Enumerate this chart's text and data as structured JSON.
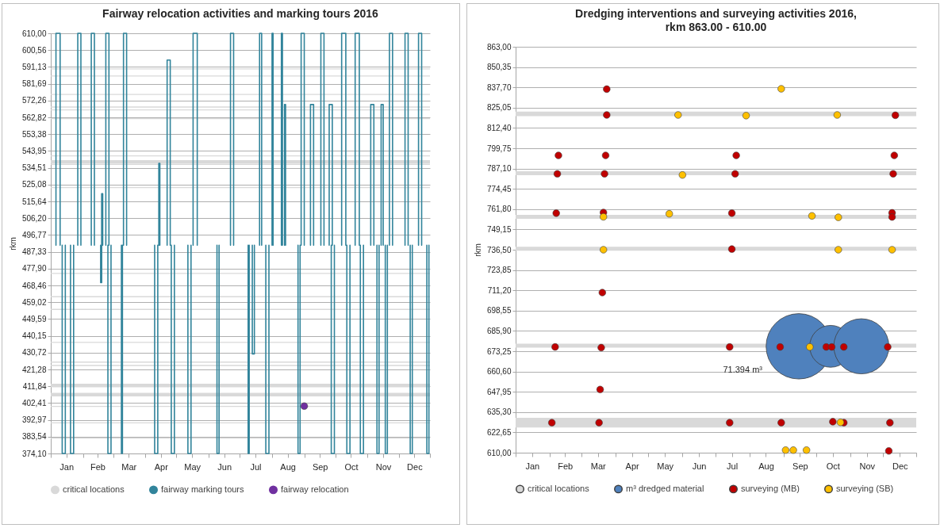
{
  "chart_data": [
    {
      "type": "line",
      "title": "Fairway relocation activities and marking tours 2016",
      "ylabel": "rkm",
      "xlim": [
        "2016-01-01",
        "2016-12-31"
      ],
      "xticks": [
        {
          "value": "2016-01-01",
          "label": null
        },
        {
          "value": "2016-01-16",
          "label": "Jan"
        },
        {
          "value": "2016-02-01",
          "label": null
        },
        {
          "value": "2016-02-15",
          "label": "Feb"
        },
        {
          "value": "2016-03-01",
          "label": null
        },
        {
          "value": "2016-03-16",
          "label": "Mar"
        },
        {
          "value": "2016-04-01",
          "label": null
        },
        {
          "value": "2016-04-16",
          "label": "Apr"
        },
        {
          "value": "2016-05-01",
          "label": null
        },
        {
          "value": "2016-05-16",
          "label": "May"
        },
        {
          "value": "2016-06-01",
          "label": null
        },
        {
          "value": "2016-06-16",
          "label": "Jun"
        },
        {
          "value": "2016-07-01",
          "label": null
        },
        {
          "value": "2016-07-16",
          "label": "Jul"
        },
        {
          "value": "2016-08-01",
          "label": null
        },
        {
          "value": "2016-08-16",
          "label": "Aug"
        },
        {
          "value": "2016-09-01",
          "label": null
        },
        {
          "value": "2016-09-16",
          "label": "Sep"
        },
        {
          "value": "2016-10-01",
          "label": null
        },
        {
          "value": "2016-10-16",
          "label": "Oct"
        },
        {
          "value": "2016-11-01",
          "label": null
        },
        {
          "value": "2016-11-16",
          "label": "Nov"
        },
        {
          "value": "2016-12-01",
          "label": null
        },
        {
          "value": "2016-12-16",
          "label": "Dec"
        },
        {
          "value": "2016-12-31",
          "label": null
        }
      ],
      "ylim": [
        374.1,
        610
      ],
      "yticks": [
        {
          "value": 374.1,
          "label": "374,10"
        },
        {
          "value": 383.54,
          "label": "383,54"
        },
        {
          "value": 392.97,
          "label": "392,97"
        },
        {
          "value": 402.41,
          "label": "402,41"
        },
        {
          "value": 411.84,
          "label": "411,84"
        },
        {
          "value": 421.28,
          "label": "421,28"
        },
        {
          "value": 430.72,
          "label": "430,72"
        },
        {
          "value": 440.15,
          "label": "440,15"
        },
        {
          "value": 449.59,
          "label": "449,59"
        },
        {
          "value": 459.02,
          "label": "459,02"
        },
        {
          "value": 468.46,
          "label": "468,46"
        },
        {
          "value": 477.9,
          "label": "477,90"
        },
        {
          "value": 487.33,
          "label": "487,33"
        },
        {
          "value": 496.77,
          "label": "496,77"
        },
        {
          "value": 506.2,
          "label": "506,20"
        },
        {
          "value": 515.64,
          "label": "515,64"
        },
        {
          "value": 525.08,
          "label": "525,08"
        },
        {
          "value": 534.51,
          "label": "534,51"
        },
        {
          "value": 543.95,
          "label": "543,95"
        },
        {
          "value": 553.38,
          "label": "553,38"
        },
        {
          "value": 562.82,
          "label": "562,82"
        },
        {
          "value": 572.26,
          "label": "572,26"
        },
        {
          "value": 581.69,
          "label": "581,69"
        },
        {
          "value": 591.13,
          "label": "591,13"
        },
        {
          "value": 600.56,
          "label": "600,56"
        },
        {
          "value": 610,
          "label": "610,00"
        }
      ],
      "grid": "y",
      "legend": "bottom",
      "bands": [
        {
          "axis": "y",
          "from": 589.7,
          "to": 590.3,
          "label": "critical locations",
          "color": "#d9d9d9"
        },
        {
          "axis": "y",
          "from": 585.7,
          "to": 586.3,
          "color": "#d9d9d9"
        },
        {
          "axis": "y",
          "from": 575.4,
          "to": 576.0,
          "color": "#d9d9d9"
        },
        {
          "axis": "y",
          "from": 568.3,
          "to": 568.9,
          "color": "#d9d9d9"
        },
        {
          "axis": "y",
          "from": 566.7,
          "to": 567.3,
          "color": "#d9d9d9"
        },
        {
          "axis": "y",
          "from": 561.8,
          "to": 562.4,
          "color": "#d9d9d9"
        },
        {
          "axis": "y",
          "from": 540.9,
          "to": 541.5,
          "color": "#d9d9d9"
        },
        {
          "axis": "y",
          "from": 536.8,
          "to": 538.8,
          "color": "#d9d9d9"
        },
        {
          "axis": "y",
          "from": 536.1,
          "to": 536.7,
          "color": "#d9d9d9"
        },
        {
          "axis": "y",
          "from": 523.1,
          "to": 523.7,
          "color": "#d9d9d9"
        },
        {
          "axis": "y",
          "from": 474.9,
          "to": 475.5,
          "color": "#d9d9d9"
        },
        {
          "axis": "y",
          "from": 461.8,
          "to": 462.4,
          "color": "#d9d9d9"
        },
        {
          "axis": "y",
          "from": 454.7,
          "to": 455.3,
          "color": "#d9d9d9"
        },
        {
          "axis": "y",
          "from": 436.2,
          "to": 436.8,
          "color": "#d9d9d9"
        },
        {
          "axis": "y",
          "from": 425.1,
          "to": 425.7,
          "color": "#d9d9d9"
        },
        {
          "axis": "y",
          "from": 423.2,
          "to": 423.8,
          "color": "#d9d9d9"
        },
        {
          "axis": "y",
          "from": 411.3,
          "to": 413.3,
          "color": "#d9d9d9"
        },
        {
          "axis": "y",
          "from": 406.2,
          "to": 408.2,
          "color": "#d9d9d9"
        },
        {
          "axis": "y",
          "from": 400.2,
          "to": 400.8,
          "color": "#d9d9d9"
        },
        {
          "axis": "y",
          "from": 391.0,
          "to": 391.6,
          "color": "#d9d9d9"
        },
        {
          "axis": "y",
          "from": 382.4,
          "to": 383.0,
          "color": "#d9d9d9"
        }
      ],
      "series": [
        {
          "name": "fairway marking tours",
          "color": "#31849b",
          "x": [
            "2016-01-06",
            "2016-01-06",
            "2016-01-10",
            "2016-01-10",
            null,
            "2016-01-12",
            "2016-01-12",
            "2016-01-15",
            "2016-01-15",
            null,
            "2016-01-20",
            "2016-01-20",
            "2016-01-23",
            "2016-01-23",
            null,
            "2016-01-27",
            "2016-01-27",
            "2016-01-30",
            "2016-01-30",
            null,
            "2016-02-09",
            "2016-02-09",
            "2016-02-12",
            "2016-02-12",
            null,
            "2016-02-18",
            "2016-02-18",
            "2016-02-19",
            "2016-02-19",
            null,
            "2016-02-19",
            "2016-02-19",
            "2016-02-20",
            "2016-02-20",
            null,
            "2016-02-23",
            "2016-02-23",
            "2016-02-26",
            "2016-02-26",
            null,
            "2016-02-25",
            "2016-02-25",
            "2016-02-28",
            "2016-02-28",
            null,
            "2016-03-09",
            "2016-03-09",
            "2016-03-10",
            "2016-03-10",
            null,
            "2016-03-11",
            "2016-03-11",
            "2016-03-14",
            "2016-03-14",
            null,
            "2016-04-10",
            "2016-04-10",
            "2016-04-13",
            "2016-04-13",
            null,
            "2016-04-14",
            "2016-04-14",
            "2016-04-15",
            "2016-04-15",
            null,
            "2016-04-22",
            "2016-04-22",
            "2016-04-25",
            "2016-04-25",
            null,
            "2016-04-26",
            "2016-04-26",
            "2016-04-29",
            "2016-04-29",
            null,
            "2016-05-12",
            "2016-05-12",
            "2016-05-15",
            "2016-05-15",
            null,
            "2016-05-17",
            "2016-05-17",
            "2016-05-21",
            "2016-05-21",
            null,
            "2016-06-09",
            "2016-06-09",
            "2016-06-11",
            "2016-06-11",
            null,
            "2016-06-22",
            "2016-06-22",
            "2016-06-25",
            "2016-06-25",
            null,
            "2016-07-09",
            "2016-07-09",
            "2016-07-10",
            "2016-07-10",
            null,
            "2016-07-13",
            "2016-07-13",
            "2016-07-15",
            "2016-07-15",
            null,
            "2016-07-20",
            "2016-07-20",
            "2016-07-22",
            "2016-07-22",
            null,
            "2016-07-26",
            "2016-07-26",
            "2016-07-29",
            "2016-07-29",
            null,
            "2016-08-01",
            "2016-08-01",
            "2016-08-02",
            "2016-08-02",
            null,
            "2016-08-10",
            "2016-08-10",
            "2016-08-11",
            "2016-08-11",
            null,
            "2016-08-13",
            "2016-08-13",
            "2016-08-14",
            "2016-08-14",
            null,
            "2016-08-26",
            "2016-08-26",
            "2016-08-28",
            "2016-08-28",
            null,
            "2016-08-29",
            "2016-08-29",
            "2016-09-01",
            "2016-09-01",
            null,
            "2016-09-07",
            "2016-09-07",
            "2016-09-10",
            "2016-09-10",
            null,
            "2016-09-17",
            "2016-09-17",
            "2016-09-20",
            "2016-09-20",
            null,
            "2016-09-25",
            "2016-09-25",
            "2016-09-28",
            "2016-09-28",
            null,
            "2016-09-27",
            "2016-09-27",
            "2016-09-30",
            "2016-09-30",
            null,
            "2016-10-07",
            "2016-10-07",
            "2016-10-11",
            "2016-10-11",
            null,
            "2016-10-12",
            "2016-10-12",
            "2016-10-15",
            "2016-10-15",
            null,
            "2016-10-20",
            "2016-10-20",
            "2016-10-24",
            "2016-10-24",
            null,
            "2016-10-25",
            "2016-10-25",
            "2016-10-28",
            "2016-10-28",
            null,
            "2016-11-04",
            "2016-11-04",
            "2016-11-07",
            "2016-11-07",
            null,
            "2016-11-10",
            "2016-11-10",
            "2016-11-12",
            "2016-11-12",
            null,
            "2016-11-14",
            "2016-11-14",
            "2016-11-16",
            "2016-11-16",
            null,
            "2016-11-18",
            "2016-11-18",
            "2016-11-20",
            "2016-11-20",
            null,
            "2016-11-22",
            "2016-11-22",
            "2016-11-25",
            "2016-11-25",
            null,
            "2016-12-07",
            "2016-12-07",
            "2016-12-10",
            "2016-12-10",
            null,
            "2016-12-12",
            "2016-12-12",
            "2016-12-14",
            "2016-12-14",
            null,
            "2016-12-20",
            "2016-12-20",
            "2016-12-23",
            "2016-12-23",
            null,
            "2016-12-28",
            "2016-12-28",
            "2016-12-30",
            "2016-12-30",
            null
          ],
          "values": [
            491,
            610,
            610,
            491,
            null,
            491,
            374.1,
            374.1,
            491,
            null,
            491,
            374.1,
            374.1,
            491,
            null,
            491,
            610,
            610,
            491,
            null,
            491,
            610,
            610,
            491,
            null,
            491,
            470,
            470,
            491,
            null,
            491,
            520,
            520,
            491,
            null,
            491,
            610,
            610,
            491,
            null,
            491,
            374.1,
            374.1,
            491,
            null,
            491,
            374.1,
            374.1,
            491,
            null,
            491,
            610,
            610,
            491,
            null,
            491,
            374.1,
            374.1,
            491,
            null,
            491,
            537,
            537,
            491,
            null,
            491,
            595,
            595,
            491,
            null,
            491,
            374.1,
            374.1,
            491,
            null,
            491,
            374.1,
            374.1,
            491,
            null,
            491,
            610,
            610,
            491,
            null,
            491,
            374.1,
            374.1,
            491,
            null,
            491,
            610,
            610,
            491,
            null,
            491,
            374.1,
            374.1,
            491,
            null,
            491,
            430,
            430,
            491,
            null,
            491,
            610,
            610,
            491,
            null,
            491,
            374.1,
            374.1,
            491,
            null,
            491,
            610,
            610,
            491,
            null,
            491,
            610,
            610,
            491,
            null,
            491,
            570,
            570,
            491,
            null,
            491,
            374.1,
            374.1,
            491,
            null,
            491,
            610,
            610,
            491,
            null,
            491,
            570,
            570,
            491,
            null,
            491,
            610,
            610,
            491,
            null,
            491,
            570,
            570,
            491,
            null,
            491,
            374.1,
            374.1,
            491,
            null,
            491,
            610,
            610,
            491,
            null,
            491,
            374.1,
            374.1,
            491,
            null,
            491,
            610,
            610,
            491,
            null,
            491,
            374.1,
            374.1,
            491,
            null,
            491,
            570,
            570,
            491,
            null,
            491,
            374.1,
            374.1,
            491,
            null,
            491,
            570,
            570,
            491,
            null,
            491,
            374.1,
            374.1,
            491,
            null,
            491,
            610,
            610,
            491,
            null,
            491,
            610,
            610,
            491,
            null,
            491,
            374.1,
            374.1,
            491,
            null,
            491,
            610,
            610,
            491,
            null,
            491,
            374.1,
            374.1,
            491,
            null
          ]
        },
        {
          "name": "fairway relocation",
          "type": "scatter",
          "color": "#7030a0",
          "x": [
            "2016-09-01"
          ],
          "values": [
            400.7
          ]
        }
      ]
    },
    {
      "type": "scatter",
      "title": "Dredging interventions and surveying activities 2016,",
      "subtitle": "rkm 863.00 - 610.00",
      "ylabel": "rkm",
      "xlim": [
        "2016-01-01",
        "2016-12-31"
      ],
      "xticks": [
        {
          "value": "2016-01-01",
          "label": null
        },
        {
          "value": "2016-01-16",
          "label": "Jan"
        },
        {
          "value": "2016-02-01",
          "label": null
        },
        {
          "value": "2016-02-15",
          "label": "Feb"
        },
        {
          "value": "2016-03-01",
          "label": null
        },
        {
          "value": "2016-03-16",
          "label": "Mar"
        },
        {
          "value": "2016-04-01",
          "label": null
        },
        {
          "value": "2016-04-16",
          "label": "Apr"
        },
        {
          "value": "2016-05-01",
          "label": null
        },
        {
          "value": "2016-05-16",
          "label": "May"
        },
        {
          "value": "2016-06-01",
          "label": null
        },
        {
          "value": "2016-06-16",
          "label": "Jun"
        },
        {
          "value": "2016-07-01",
          "label": null
        },
        {
          "value": "2016-07-16",
          "label": "Jul"
        },
        {
          "value": "2016-08-01",
          "label": null
        },
        {
          "value": "2016-08-16",
          "label": "Aug"
        },
        {
          "value": "2016-09-01",
          "label": null
        },
        {
          "value": "2016-09-16",
          "label": "Sep"
        },
        {
          "value": "2016-10-01",
          "label": null
        },
        {
          "value": "2016-10-16",
          "label": "Oct"
        },
        {
          "value": "2016-11-01",
          "label": null
        },
        {
          "value": "2016-11-16",
          "label": "Nov"
        },
        {
          "value": "2016-12-01",
          "label": null
        },
        {
          "value": "2016-12-16",
          "label": "Dec"
        },
        {
          "value": "2016-12-31",
          "label": null
        }
      ],
      "ylim": [
        610,
        863
      ],
      "yticks": [
        {
          "value": 610,
          "label": "610,00"
        },
        {
          "value": 622.65,
          "label": "622,65"
        },
        {
          "value": 635.3,
          "label": "635,30"
        },
        {
          "value": 647.95,
          "label": "647,95"
        },
        {
          "value": 660.6,
          "label": "660,60"
        },
        {
          "value": 673.25,
          "label": "673,25"
        },
        {
          "value": 685.9,
          "label": "685,90"
        },
        {
          "value": 698.55,
          "label": "698,55"
        },
        {
          "value": 711.2,
          "label": "711,20"
        },
        {
          "value": 723.85,
          "label": "723,85"
        },
        {
          "value": 736.5,
          "label": "736,50"
        },
        {
          "value": 749.15,
          "label": "749,15"
        },
        {
          "value": 761.8,
          "label": "761,80"
        },
        {
          "value": 774.45,
          "label": "774,45"
        },
        {
          "value": 787.1,
          "label": "787,10"
        },
        {
          "value": 799.75,
          "label": "799,75"
        },
        {
          "value": 812.4,
          "label": "812,40"
        },
        {
          "value": 825.05,
          "label": "825,05"
        },
        {
          "value": 837.7,
          "label": "837,70"
        },
        {
          "value": 850.35,
          "label": "850,35"
        },
        {
          "value": 863,
          "label": "863,00"
        }
      ],
      "grid": "y",
      "legend": "bottom",
      "annotations": [
        "71.394 m³"
      ],
      "bands": [
        {
          "axis": "y",
          "from": 819.8,
          "to": 822.6,
          "label": "critical locations",
          "color": "#d9d9d9"
        },
        {
          "axis": "y",
          "from": 783.0,
          "to": 785.4,
          "color": "#d9d9d9"
        },
        {
          "axis": "y",
          "from": 755.8,
          "to": 758.2,
          "color": "#d9d9d9"
        },
        {
          "axis": "y",
          "from": 735.9,
          "to": 738.3,
          "color": "#d9d9d9"
        },
        {
          "axis": "y",
          "from": 675.5,
          "to": 677.9,
          "color": "#d9d9d9"
        },
        {
          "axis": "y",
          "from": 625.7,
          "to": 631.7,
          "color": "#d9d9d9"
        }
      ],
      "series": [
        {
          "name": "m³ dredged material",
          "type": "bubble",
          "color": "#4f81bd",
          "x": [
            "2016-09-15",
            "2016-10-14",
            "2016-11-11"
          ],
          "values": [
            676.3,
            676.3,
            676.3
          ],
          "sizes": [
            1,
            0.41,
            0.71
          ]
        },
        {
          "name": "surveying (MB)",
          "color": "#c00000",
          "x": [
            "2016-03-24",
            "2016-03-24",
            "2016-12-12",
            "2016-02-09",
            "2016-03-23",
            "2016-07-20",
            "2016-12-11",
            "2016-02-08",
            "2016-03-22",
            "2016-07-19",
            "2016-12-10",
            "2016-02-07",
            "2016-03-21",
            "2016-07-16",
            "2016-12-09",
            "2016-12-09",
            "2016-07-16",
            "2016-03-20",
            "2016-02-06",
            "2016-03-19",
            "2016-07-14",
            "2016-08-29",
            "2016-10-10",
            "2016-10-15",
            "2016-10-26",
            "2016-12-05",
            "2016-03-18",
            "2016-02-03",
            "2016-03-17",
            "2016-07-14",
            "2016-08-30",
            "2016-10-16",
            "2016-10-26",
            "2016-12-07",
            "2016-12-06"
          ],
          "values": [
            836.6,
            820.5,
            820.3,
            795.3,
            795.3,
            795.3,
            795.3,
            783.8,
            783.8,
            783.8,
            783.8,
            759.3,
            759.7,
            759.3,
            759.5,
            756.9,
            736.9,
            709.8,
            675.9,
            675.5,
            675.9,
            675.9,
            675.9,
            675.9,
            675.9,
            675.9,
            649.4,
            628.7,
            628.7,
            628.7,
            628.7,
            629.3,
            628.7,
            628.7,
            611.1
          ]
        },
        {
          "name": "surveying (SB)",
          "color": "#ffc000",
          "x": [
            "2016-08-30",
            "2016-05-28",
            "2016-07-29",
            "2016-10-20",
            "2016-06-01",
            "2016-05-20",
            "2016-03-21",
            "2016-09-27",
            "2016-10-21",
            "2016-03-21",
            "2016-10-21",
            "2016-12-09",
            "2016-09-25",
            "2016-10-23",
            "2016-09-03",
            "2016-09-10",
            "2016-09-22"
          ],
          "values": [
            836.8,
            820.5,
            820.1,
            820.5,
            783.1,
            758.9,
            757.0,
            757.6,
            756.7,
            736.5,
            736.5,
            736.5,
            675.9,
            628.9,
            611.6,
            611.6,
            611.6
          ]
        }
      ]
    }
  ]
}
